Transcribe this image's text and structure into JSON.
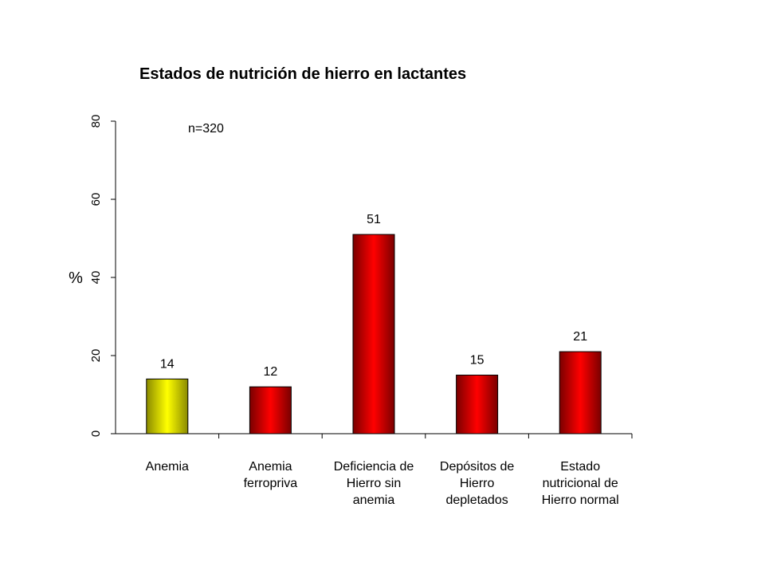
{
  "chart_data": {
    "type": "bar",
    "title": "Estados de nutrición de hierro en lactantes",
    "annotation": "n=320",
    "ylabel": "%",
    "xlabel": "",
    "ylim": [
      0,
      80
    ],
    "yticks": [
      "0",
      "20",
      "40",
      "60",
      "80"
    ],
    "categories": [
      [
        "Anemia"
      ],
      [
        "Anemia",
        "ferropriva"
      ],
      [
        "Deficiencia de",
        "Hierro sin",
        "anemia"
      ],
      [
        "Depósitos de",
        "Hierro",
        "depletados"
      ],
      [
        "Estado",
        "nutricional de",
        "Hierro normal"
      ]
    ],
    "values": [
      14,
      12,
      51,
      15,
      21
    ],
    "value_labels": [
      "14",
      "12",
      "51",
      "15",
      "21"
    ],
    "bar_colors": [
      "#f2f200",
      "#e00000",
      "#e00000",
      "#e00000",
      "#e00000"
    ],
    "grid": false,
    "legend": "none"
  }
}
